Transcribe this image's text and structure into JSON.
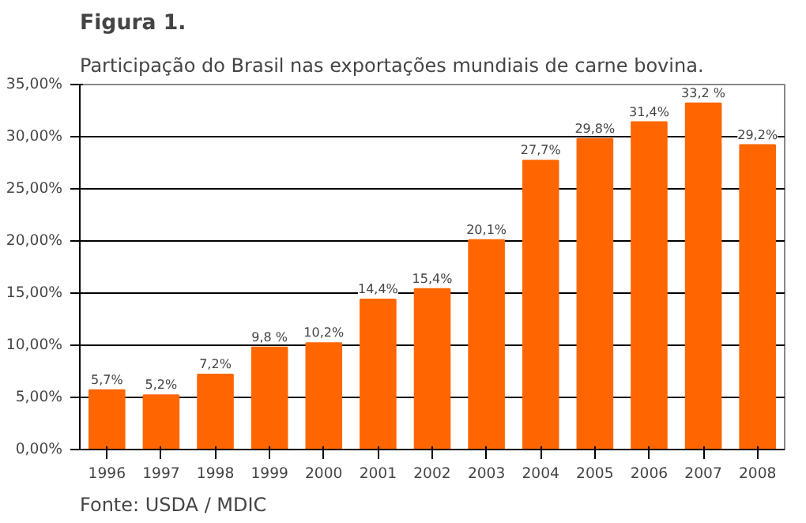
{
  "chart_data": {
    "type": "bar",
    "title": "Figura 1.",
    "subtitle": "Participação do Brasil nas exportações mundiais de carne bovina.",
    "categories": [
      "1996",
      "1997",
      "1998",
      "1999",
      "2000",
      "2001",
      "2002",
      "2003",
      "2004",
      "2005",
      "2006",
      "2007",
      "2008"
    ],
    "values": [
      5.7,
      5.2,
      7.2,
      9.8,
      10.2,
      14.4,
      15.4,
      20.1,
      27.7,
      29.8,
      31.4,
      33.2,
      29.2
    ],
    "value_labels": [
      "5,7%",
      "5,2%",
      "7,2%",
      "9,8 %",
      "10,2%",
      "14,4%",
      "15,4%",
      "20,1%",
      "27,7%",
      "29,8%",
      "31,4%",
      "33,2 %",
      "29,2%"
    ],
    "color": "#ff6600",
    "ylim": [
      0,
      35
    ],
    "yticks": [
      {
        "value": 0,
        "label": "0,00%"
      },
      {
        "value": 5,
        "label": "5,00%"
      },
      {
        "value": 10,
        "label": "10,00%"
      },
      {
        "value": 15,
        "label": "15,00%"
      },
      {
        "value": 20,
        "label": "20,00%"
      },
      {
        "value": 25,
        "label": "25,00%"
      },
      {
        "value": 30,
        "label": "30,00%"
      },
      {
        "value": 35,
        "label": "35,00%"
      }
    ],
    "grid": "y",
    "annotations": [
      "Fonte: USDA / MDIC"
    ]
  }
}
